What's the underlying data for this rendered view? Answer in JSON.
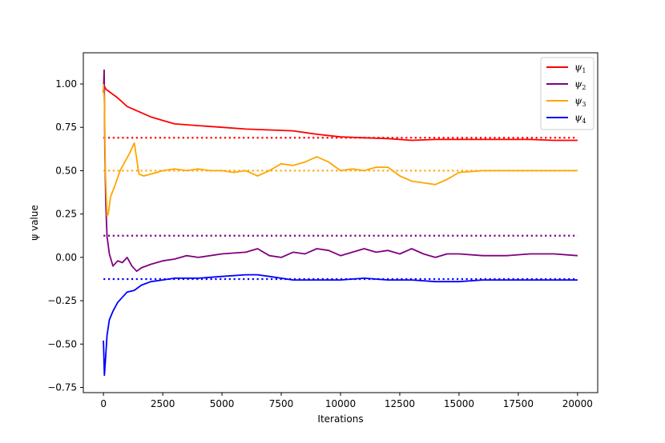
{
  "chart_data": {
    "type": "line",
    "title": "",
    "xlabel": "Iterations",
    "ylabel": "ψ value",
    "xlim": [
      -850,
      20850
    ],
    "ylim": [
      -0.78,
      1.18
    ],
    "x_ticks": [
      0,
      2500,
      5000,
      7500,
      10000,
      12500,
      15000,
      17500,
      20000
    ],
    "x_tick_labels": [
      "0",
      "2500",
      "5000",
      "7500",
      "10000",
      "12500",
      "15000",
      "17500",
      "20000"
    ],
    "y_ticks": [
      -0.75,
      -0.5,
      -0.25,
      0.0,
      0.25,
      0.5,
      0.75,
      1.0
    ],
    "y_tick_labels": [
      "−0.75",
      "−0.50",
      "−0.25",
      "0.00",
      "0.25",
      "0.50",
      "0.75",
      "1.00"
    ],
    "grid": false,
    "legend_position": "top-right",
    "series": [
      {
        "name": "ψ1",
        "name_base": "ψ",
        "name_sub": "1",
        "color": "#ff0000",
        "x": [
          0,
          100,
          300,
          600,
          1000,
          1500,
          2000,
          2500,
          3000,
          4000,
          5000,
          6000,
          7000,
          8000,
          9000,
          10000,
          11000,
          12000,
          13000,
          14000,
          15000,
          16000,
          17000,
          18000,
          19000,
          20000
        ],
        "y": [
          1.0,
          0.97,
          0.95,
          0.92,
          0.87,
          0.84,
          0.81,
          0.79,
          0.77,
          0.76,
          0.75,
          0.74,
          0.735,
          0.73,
          0.71,
          0.695,
          0.69,
          0.685,
          0.675,
          0.68,
          0.68,
          0.68,
          0.68,
          0.68,
          0.675,
          0.675
        ]
      },
      {
        "name": "ψ2",
        "name_base": "ψ",
        "name_sub": "2",
        "color": "#800080",
        "x": [
          0,
          30,
          60,
          100,
          150,
          250,
          400,
          600,
          800,
          1000,
          1200,
          1400,
          1600,
          2000,
          2500,
          3000,
          3500,
          4000,
          5000,
          6000,
          6500,
          7000,
          7500,
          8000,
          8500,
          9000,
          9500,
          10000,
          10500,
          11000,
          11500,
          12000,
          12500,
          13000,
          13500,
          14000,
          14500,
          15000,
          16000,
          17000,
          18000,
          19000,
          20000
        ],
        "y": [
          0.95,
          1.08,
          0.6,
          0.3,
          0.12,
          0.02,
          -0.05,
          -0.02,
          -0.03,
          0.0,
          -0.05,
          -0.08,
          -0.06,
          -0.04,
          -0.02,
          -0.01,
          0.01,
          0.0,
          0.02,
          0.03,
          0.05,
          0.01,
          0.0,
          0.03,
          0.02,
          0.05,
          0.04,
          0.01,
          0.03,
          0.05,
          0.03,
          0.04,
          0.02,
          0.05,
          0.02,
          0.0,
          0.02,
          0.02,
          0.01,
          0.01,
          0.02,
          0.02,
          0.01
        ]
      },
      {
        "name": "ψ3",
        "name_base": "ψ",
        "name_sub": "3",
        "color": "#ffa500",
        "x": [
          0,
          40,
          80,
          150,
          200,
          300,
          500,
          700,
          900,
          1100,
          1300,
          1500,
          1700,
          2000,
          2500,
          3000,
          3500,
          4000,
          4500,
          5000,
          5500,
          6000,
          6500,
          7000,
          7500,
          8000,
          8500,
          9000,
          9500,
          10000,
          10500,
          11000,
          11500,
          12000,
          12500,
          13000,
          13500,
          14000,
          14500,
          15000,
          16000,
          17000,
          18000,
          19000,
          20000
        ],
        "y": [
          1.0,
          0.9,
          0.5,
          0.24,
          0.25,
          0.35,
          0.42,
          0.5,
          0.55,
          0.6,
          0.66,
          0.48,
          0.47,
          0.48,
          0.5,
          0.51,
          0.5,
          0.51,
          0.5,
          0.5,
          0.49,
          0.5,
          0.47,
          0.5,
          0.54,
          0.53,
          0.55,
          0.58,
          0.55,
          0.5,
          0.51,
          0.5,
          0.52,
          0.52,
          0.47,
          0.44,
          0.43,
          0.42,
          0.45,
          0.49,
          0.5,
          0.5,
          0.5,
          0.5,
          0.5
        ]
      },
      {
        "name": "ψ4",
        "name_base": "ψ",
        "name_sub": "4",
        "color": "#0000ff",
        "x": [
          0,
          40,
          80,
          150,
          250,
          400,
          600,
          800,
          1000,
          1300,
          1600,
          2000,
          2500,
          3000,
          4000,
          5000,
          6000,
          6500,
          7000,
          8000,
          9000,
          10000,
          11000,
          12000,
          13000,
          14000,
          15000,
          16000,
          17000,
          18000,
          19000,
          20000
        ],
        "y": [
          -0.48,
          -0.68,
          -0.6,
          -0.45,
          -0.36,
          -0.31,
          -0.26,
          -0.23,
          -0.2,
          -0.19,
          -0.16,
          -0.14,
          -0.13,
          -0.12,
          -0.12,
          -0.11,
          -0.1,
          -0.1,
          -0.11,
          -0.13,
          -0.13,
          -0.13,
          -0.12,
          -0.13,
          -0.13,
          -0.14,
          -0.14,
          -0.13,
          -0.13,
          -0.13,
          -0.13,
          -0.13
        ]
      }
    ],
    "reference_lines": [
      {
        "series": "ψ1",
        "y": 0.69,
        "x_start": 0,
        "x_end": 20000,
        "color": "#ff0000",
        "style": "dotted"
      },
      {
        "series": "ψ3",
        "y": 0.5,
        "x_start": 0,
        "x_end": 20000,
        "color": "#ffa500",
        "style": "dotted"
      },
      {
        "series": "ψ2",
        "y": 0.125,
        "x_start": 0,
        "x_end": 20000,
        "color": "#800080",
        "style": "dotted"
      },
      {
        "series": "ψ4",
        "y": -0.125,
        "x_start": 0,
        "x_end": 20000,
        "color": "#0000ff",
        "style": "dotted"
      }
    ]
  }
}
